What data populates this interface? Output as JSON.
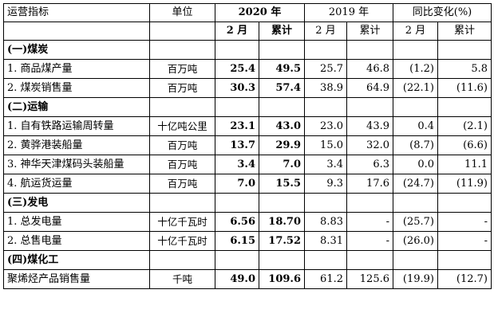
{
  "header": {
    "indicator": "运营指标",
    "unit": "单位",
    "year_2020": "2020 年",
    "year_2019": "2019 年",
    "yoy": "同比变化(%)",
    "month": "2 月",
    "cumulative": "累计"
  },
  "rows": [
    {
      "type": "section",
      "label": "(一)煤炭"
    },
    {
      "type": "data",
      "label": "1. 商品煤产量",
      "unit": "百万吨",
      "v": [
        "25.4",
        "49.5",
        "25.7",
        "46.8",
        "(1.2)",
        "5.8"
      ]
    },
    {
      "type": "data",
      "label": "2. 煤炭销售量",
      "unit": "百万吨",
      "v": [
        "30.3",
        "57.4",
        "38.9",
        "64.9",
        "(22.1)",
        "(11.6)"
      ]
    },
    {
      "type": "section",
      "label": "(二)运输"
    },
    {
      "type": "data",
      "label": "1. 自有铁路运输周转量",
      "unit": "十亿吨公里",
      "v": [
        "23.1",
        "43.0",
        "23.0",
        "43.9",
        "0.4",
        "(2.1)"
      ]
    },
    {
      "type": "data",
      "label": "2. 黄骅港装船量",
      "unit": "百万吨",
      "v": [
        "13.7",
        "29.9",
        "15.0",
        "32.0",
        "(8.7)",
        "(6.6)"
      ]
    },
    {
      "type": "data",
      "label": "3. 神华天津煤码头装船量",
      "unit": "百万吨",
      "v": [
        "3.4",
        "7.0",
        "3.4",
        "6.3",
        "0.0",
        "11.1"
      ]
    },
    {
      "type": "data",
      "label": "4. 航运货运量",
      "unit": "百万吨",
      "v": [
        "7.0",
        "15.5",
        "9.3",
        "17.6",
        "(24.7)",
        "(11.9)"
      ]
    },
    {
      "type": "section",
      "label": "(三)发电"
    },
    {
      "type": "data",
      "label": "1. 总发电量",
      "unit": "十亿千瓦时",
      "v": [
        "6.56",
        "18.70",
        "8.83",
        "-",
        "(25.7)",
        "-"
      ]
    },
    {
      "type": "data",
      "label": "2. 总售电量",
      "unit": "十亿千瓦时",
      "v": [
        "6.15",
        "17.52",
        "8.31",
        "-",
        "(26.0)",
        "-"
      ]
    },
    {
      "type": "section",
      "label": "(四)煤化工"
    },
    {
      "type": "data",
      "label": "聚烯烃产品销售量",
      "unit": "千吨",
      "v": [
        "49.0",
        "109.6",
        "61.2",
        "125.6",
        "(19.9)",
        "(12.7)"
      ]
    }
  ]
}
